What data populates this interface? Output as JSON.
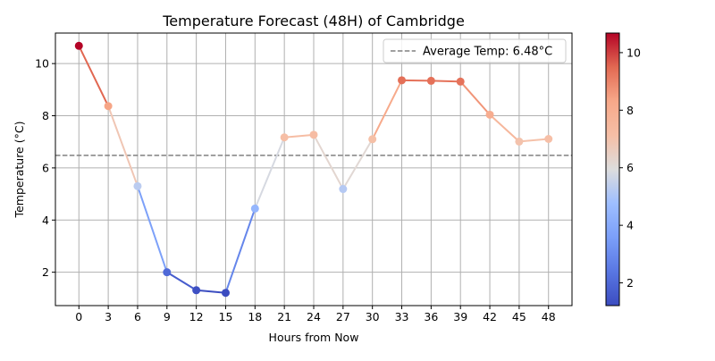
{
  "chart_data": {
    "type": "line",
    "title": "Temperature Forecast (48H) of Cambridge",
    "xlabel": "Hours from Now",
    "ylabel": "Temperature (°C)",
    "x": [
      0,
      3,
      6,
      9,
      12,
      15,
      18,
      21,
      24,
      27,
      30,
      33,
      36,
      39,
      42,
      45,
      48
    ],
    "series": [
      {
        "values": [
          10.68,
          8.37,
          5.3,
          2.0,
          1.31,
          1.21,
          4.44,
          7.17,
          7.27,
          5.19,
          7.1,
          9.36,
          9.34,
          9.31,
          8.04,
          7.01,
          7.11
        ]
      }
    ],
    "average_line": {
      "value": 6.48,
      "label": "Average Temp: 6.48°C",
      "color": "#808080",
      "style": "dashed"
    },
    "xticks": [
      0,
      3,
      6,
      9,
      12,
      15,
      18,
      21,
      24,
      27,
      30,
      33,
      36,
      39,
      42,
      45,
      48
    ],
    "yticks": [
      2,
      4,
      6,
      8,
      10
    ],
    "xlim": [
      -2.4,
      50.4
    ],
    "ylim": [
      0.72,
      11.17
    ],
    "grid": true,
    "legend_position": "top-right",
    "colormap": "coolwarm",
    "colorbar": {
      "min": 1.21,
      "max": 10.68,
      "ticks": [
        2,
        4,
        6,
        8,
        10
      ]
    }
  }
}
